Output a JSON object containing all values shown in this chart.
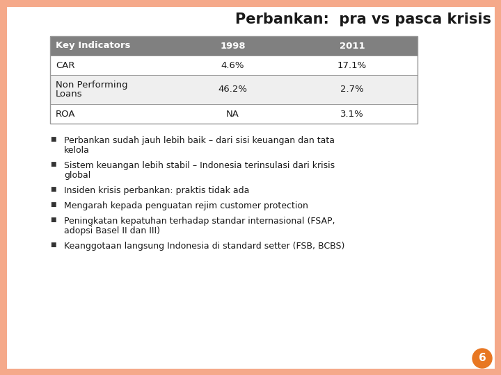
{
  "title": "Perbankan:  pra vs pasca krisis",
  "background_color": "#FFFFFF",
  "border_color": "#F5A98A",
  "table_header_bg": "#808080",
  "table_header_color": "#FFFFFF",
  "table_row_bg_odd": "#FFFFFF",
  "table_row_bg_even": "#EFEFEF",
  "table_border_color": "#999999",
  "table_columns": [
    "Key Indicators",
    "1998",
    "2011"
  ],
  "table_data": [
    [
      "CAR",
      "4.6%",
      "17.1%"
    ],
    [
      "Non Performing\nLoans",
      "46.2%",
      "2.7%"
    ],
    [
      "ROA",
      "NA",
      "3.1%"
    ]
  ],
  "bullet_points": [
    "Perbankan sudah jauh lebih baik – dari sisi keuangan dan tata\nkelola",
    "Sistem keuangan lebih stabil – Indonesia terinsulasi dari krisis\nglobal",
    "Insiden krisis perbankan: praktis tidak ada",
    "Mengarah kepada penguatan rejim customer protection",
    "Peningkatan kepatuhan terhadap standar internasional (FSAP,\nadopsi Basel II dan III)",
    "Keanggotaan langsung Indonesia di standard setter (FSB, BCBS)"
  ],
  "page_number": "6",
  "page_circle_color": "#E87722",
  "page_number_color": "#FFFFFF",
  "title_fontsize": 15,
  "table_header_fontsize": 9.5,
  "table_data_fontsize": 9.5,
  "bullet_fontsize": 9,
  "bullet_symbol": "■"
}
